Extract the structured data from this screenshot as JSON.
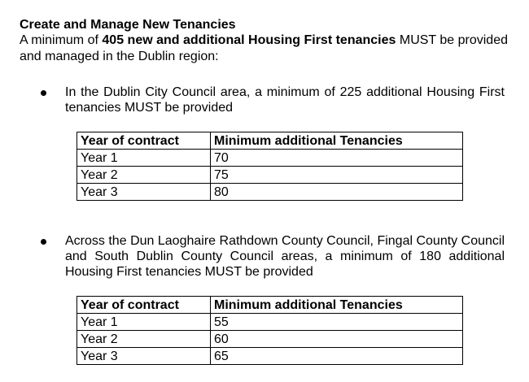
{
  "document": {
    "heading": "Create and Manage New Tenancies",
    "intro": {
      "prefix": "A minimum of ",
      "bold": "405 new and additional Housing First tenancies",
      "suffix": " MUST be provided and managed in the Dublin region:"
    },
    "sections": [
      {
        "bullet": "In the Dublin City Council area, a minimum of 225 additional Housing First tenancies MUST be provided",
        "table": {
          "headers": [
            "Year of contract",
            "Minimum additional Tenancies"
          ],
          "rows": [
            [
              "Year 1",
              "70"
            ],
            [
              "Year 2",
              "75"
            ],
            [
              "Year 3",
              "80"
            ]
          ]
        }
      },
      {
        "bullet": "Across the Dun Laoghaire Rathdown County Council, Fingal County Council and South Dublin County Council areas, a minimum of 180 additional Housing First tenancies MUST be provided",
        "table": {
          "headers": [
            "Year of contract",
            "Minimum additional Tenancies"
          ],
          "rows": [
            [
              "Year 1",
              "55"
            ],
            [
              "Year 2",
              "60"
            ],
            [
              "Year 3",
              "65"
            ]
          ]
        }
      }
    ]
  }
}
